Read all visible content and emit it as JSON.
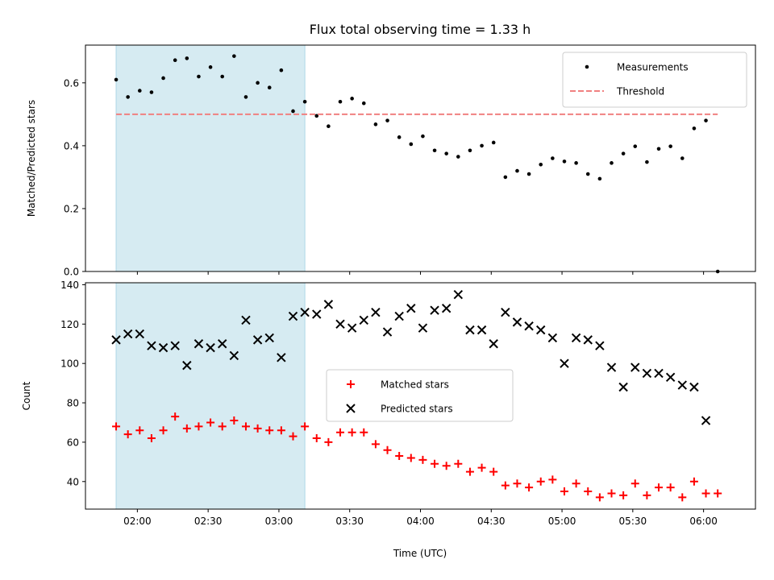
{
  "chart_data": {
    "title": "Flux total observing time = 1.33 h",
    "xlabel": "Time (UTC)",
    "x_tick_labels": [
      "02:00",
      "02:30",
      "03:00",
      "03:30",
      "04:00",
      "04:30",
      "05:00",
      "05:30",
      "06:00"
    ],
    "x_tick_minutes": [
      120,
      150,
      180,
      210,
      240,
      270,
      300,
      330,
      360
    ],
    "xlim_minutes": [
      98,
      382
    ],
    "shaded_interval_minutes": [
      111,
      191
    ],
    "shade_color": "#add8e6",
    "panels": [
      {
        "name": "ratio",
        "type": "scatter",
        "ylabel": "Matched/Predicted stars",
        "ylim": [
          0,
          0.72
        ],
        "y_ticks": [
          0.0,
          0.2,
          0.4,
          0.6
        ],
        "y_tick_labels": [
          "0.0",
          "0.2",
          "0.4",
          "0.6"
        ],
        "legend_position": "upper right",
        "series": [
          {
            "name": "Measurements",
            "marker": "dot",
            "color": "#000000",
            "x": [
              111,
              116,
              121,
              126,
              131,
              136,
              141,
              146,
              151,
              156,
              161,
              166,
              171,
              176,
              181,
              186,
              191,
              196,
              201,
              206,
              211,
              216,
              221,
              226,
              231,
              236,
              241,
              246,
              251,
              256,
              261,
              266,
              271,
              276,
              281,
              286,
              291,
              296,
              301,
              306,
              311,
              316,
              321,
              326,
              331,
              336,
              341,
              346,
              351,
              356,
              361,
              366
            ],
            "y": [
              0.61,
              0.555,
              0.575,
              0.57,
              0.615,
              0.672,
              0.678,
              0.62,
              0.65,
              0.62,
              0.685,
              0.555,
              0.6,
              0.585,
              0.64,
              0.51,
              0.54,
              0.495,
              0.462,
              0.54,
              0.55,
              0.535,
              0.468,
              0.48,
              0.427,
              0.405,
              0.43,
              0.385,
              0.375,
              0.365,
              0.385,
              0.4,
              0.41,
              0.3,
              0.32,
              0.31,
              0.34,
              0.36,
              0.35,
              0.345,
              0.31,
              0.295,
              0.345,
              0.375,
              0.398,
              0.348,
              0.39,
              0.398,
              0.36,
              0.455,
              0.48,
              0.0
            ]
          },
          {
            "name": "Threshold",
            "style": "dashed",
            "color": "#f08080",
            "x": [
              111,
              366
            ],
            "y": [
              0.5,
              0.5
            ]
          }
        ]
      },
      {
        "name": "counts",
        "type": "scatter",
        "ylabel": "Count",
        "ylim": [
          26,
          141
        ],
        "y_ticks": [
          40,
          60,
          80,
          100,
          120,
          140
        ],
        "y_tick_labels": [
          "40",
          "60",
          "80",
          "100",
          "120",
          "140"
        ],
        "legend_position": "center",
        "series": [
          {
            "name": "Matched stars",
            "marker": "plus",
            "color": "#ff0000",
            "x": [
              111,
              116,
              121,
              126,
              131,
              136,
              141,
              146,
              151,
              156,
              161,
              166,
              171,
              176,
              181,
              186,
              191,
              196,
              201,
              206,
              211,
              216,
              221,
              226,
              231,
              236,
              241,
              246,
              251,
              256,
              261,
              266,
              271,
              276,
              281,
              286,
              291,
              296,
              301,
              306,
              311,
              316,
              321,
              326,
              331,
              336,
              341,
              346,
              351,
              356,
              361,
              366
            ],
            "y": [
              68,
              64,
              66,
              62,
              66,
              73,
              67,
              68,
              70,
              68,
              71,
              68,
              67,
              66,
              66,
              63,
              68,
              62,
              60,
              65,
              65,
              65,
              59,
              56,
              53,
              52,
              51,
              49,
              48,
              49,
              45,
              47,
              45,
              38,
              39,
              37,
              40,
              41,
              35,
              39,
              35,
              32,
              34,
              33,
              39,
              33,
              37,
              37,
              32,
              40,
              34,
              34
            ]
          },
          {
            "name": "Predicted stars",
            "marker": "x",
            "color": "#000000",
            "x": [
              111,
              116,
              121,
              126,
              131,
              136,
              141,
              146,
              151,
              156,
              161,
              166,
              171,
              176,
              181,
              186,
              191,
              196,
              201,
              206,
              211,
              216,
              221,
              226,
              231,
              236,
              241,
              246,
              251,
              256,
              261,
              266,
              271,
              276,
              281,
              286,
              291,
              296,
              301,
              306,
              311,
              316,
              321,
              326,
              331,
              336,
              341,
              346,
              351,
              356,
              361
            ],
            "y": [
              112,
              115,
              115,
              109,
              108,
              109,
              99,
              110,
              108,
              110,
              104,
              122,
              112,
              113,
              103,
              124,
              126,
              125,
              130,
              120,
              118,
              122,
              126,
              116,
              124,
              128,
              118,
              127,
              128,
              135,
              117,
              117,
              110,
              126,
              121,
              119,
              117,
              113,
              100,
              113,
              112,
              109,
              98,
              88,
              98,
              95,
              95,
              93,
              89,
              88,
              71
            ]
          }
        ]
      }
    ]
  }
}
